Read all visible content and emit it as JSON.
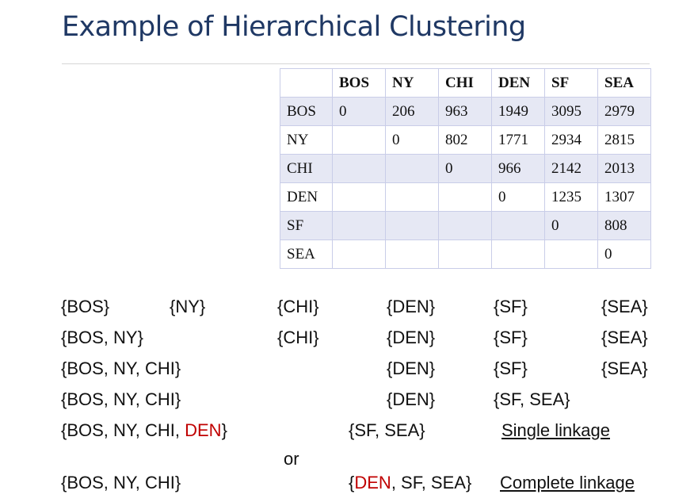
{
  "title": "Example of Hierarchical Clustering",
  "table": {
    "headers": [
      "",
      "BOS",
      "NY",
      "CHI",
      "DEN",
      "SF",
      "SEA"
    ],
    "rows": [
      [
        "BOS",
        "0",
        "206",
        "963",
        "1949",
        "3095",
        "2979"
      ],
      [
        "NY",
        "",
        "0",
        "802",
        "1771",
        "2934",
        "2815"
      ],
      [
        "CHI",
        "",
        "",
        "0",
        "966",
        "2142",
        "2013"
      ],
      [
        "DEN",
        "",
        "",
        "",
        "0",
        "1235",
        "1307"
      ],
      [
        "SF",
        "",
        "",
        "",
        "",
        "0",
        "808"
      ],
      [
        "SEA",
        "",
        "",
        "",
        "",
        "",
        "0"
      ]
    ]
  },
  "steps": {
    "row1": [
      "{BOS}",
      "{NY}",
      "{CHI}",
      "{DEN}",
      "{SF}",
      "{SEA}"
    ],
    "row2": [
      "{BOS, NY}",
      "{CHI}",
      "{DEN}",
      "{SF}",
      "{SEA}"
    ],
    "row3": [
      "{BOS, NY, CHI}",
      "{DEN}",
      "{SF}",
      "{SEA}"
    ],
    "row4": [
      "{BOS, NY, CHI}",
      "{DEN}",
      "{SF, SEA}"
    ],
    "row5": {
      "c1_pre": "{BOS, NY, CHI, ",
      "c1_red": "DEN",
      "c1_post": "}",
      "c2": "{SF, SEA}",
      "label": "Single linkage"
    },
    "or": "or",
    "row6": {
      "c1": "{BOS, NY, CHI}",
      "c2_pre": "{",
      "c2_red": "DEN",
      "c2_post": ", SF, SEA}",
      "label": "Complete linkage"
    }
  },
  "colors": {
    "title": "#1f3864",
    "highlight": "#c00000",
    "band": "#e6e8f4",
    "border": "#c9cde8"
  }
}
